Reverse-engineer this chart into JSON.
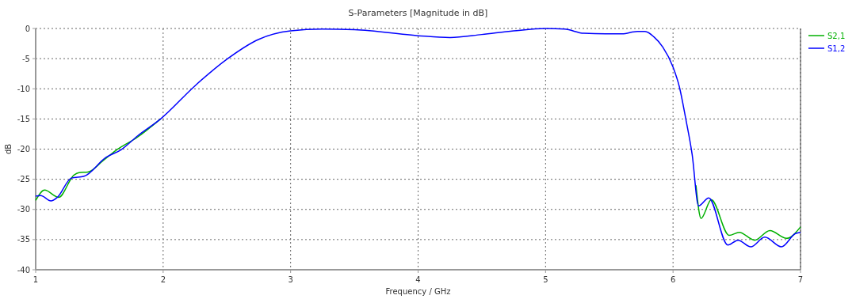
{
  "chart_data": {
    "type": "line",
    "title": "S-Parameters [Magnitude in dB]",
    "xlabel": "Frequency / GHz",
    "ylabel": "dB",
    "xlim": [
      1,
      7
    ],
    "ylim": [
      -40,
      0
    ],
    "xticks": [
      1,
      2,
      3,
      4,
      5,
      6,
      7
    ],
    "yticks": [
      -40,
      -35,
      -30,
      -25,
      -20,
      -15,
      -10,
      -5,
      0
    ],
    "grid": true,
    "legend": "top right",
    "line_style": "solid",
    "marker": "none",
    "series": [
      {
        "name": "S2,1",
        "color": "#00b000",
        "x": [
          1.0,
          1.07,
          1.18,
          1.3,
          1.34,
          1.41,
          1.53,
          1.63,
          1.8,
          1.98
        ],
        "values": [
          -28.5,
          -26.8,
          -28.0,
          -24.3,
          -23.9,
          -23.8,
          -21.9,
          -20.2,
          -18.0,
          -15.0
        ]
      },
      {
        "color": "#00b000",
        "x": [
          6.18,
          6.22,
          6.3,
          6.44,
          6.52,
          6.64,
          6.76,
          6.89,
          7.0
        ],
        "values": [
          -26.0,
          -31.5,
          -28.4,
          -34.3,
          -33.8,
          -35.1,
          -33.5,
          -34.8,
          -32.9
        ]
      },
      {
        "name": "S1,2",
        "color": "#0000ff",
        "x": [
          1.0,
          1.04,
          1.12,
          1.17,
          1.28,
          1.38,
          1.55,
          1.67,
          1.8,
          1.98,
          2.25,
          2.5,
          2.75,
          3.0,
          3.25,
          3.5,
          4.0,
          4.25,
          4.5,
          4.75,
          5.0,
          5.15,
          5.3,
          5.5,
          5.6,
          5.72,
          5.78,
          5.85,
          5.92,
          6.0,
          6.05,
          6.1,
          6.15,
          6.2,
          6.28,
          6.43,
          6.51,
          6.61,
          6.72,
          6.85,
          6.96,
          7.0
        ],
        "values": [
          -27.8,
          -27.7,
          -28.6,
          -28.0,
          -24.8,
          -24.5,
          -21.4,
          -20.1,
          -17.8,
          -15.0,
          -9.5,
          -5.1,
          -1.8,
          -0.4,
          -0.1,
          -0.2,
          -1.2,
          -1.5,
          -1.0,
          -0.4,
          0,
          -0.1,
          -0.8,
          -0.9,
          -0.9,
          -0.5,
          -0.5,
          -1.4,
          -3.1,
          -6.4,
          -9.7,
          -15.0,
          -20.9,
          -29.4,
          -28.1,
          -35.9,
          -35.1,
          -36.2,
          -34.6,
          -36.2,
          -34.0,
          -33.8
        ]
      }
    ]
  }
}
